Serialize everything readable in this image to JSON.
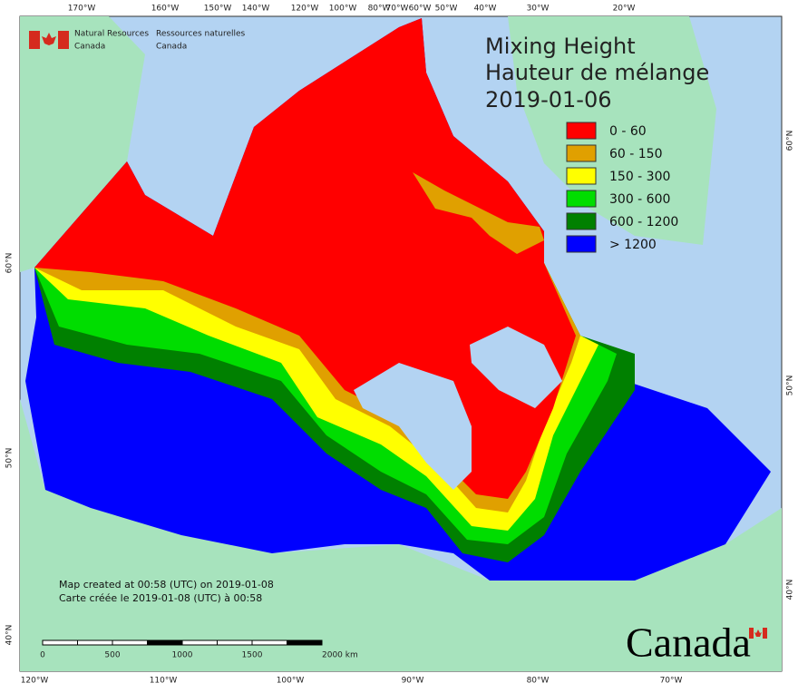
{
  "agency": {
    "en": [
      "Natural Resources",
      "Canada"
    ],
    "fr": [
      "Ressources naturelles",
      "Canada"
    ]
  },
  "title": [
    "Mixing Height",
    "Hauteur de mélange",
    "2019-01-06"
  ],
  "legend": [
    {
      "label": "0 - 60",
      "color": "#ff0000"
    },
    {
      "label": "60 - 150",
      "color": "#e0a000"
    },
    {
      "label": "150 - 300",
      "color": "#ffff00"
    },
    {
      "label": "300 - 600",
      "color": "#00dd00"
    },
    {
      "label": "600 - 1200",
      "color": "#008000"
    },
    {
      "label": "> 1200",
      "color": "#0000ff"
    }
  ],
  "longitude_labels_top": [
    "170°W",
    "160°W",
    "150°W",
    "140°W",
    "120°W",
    "100°W",
    "80°W",
    "70°W",
    "60°W",
    "50°W",
    "40°W",
    "30°W",
    "20°W"
  ],
  "longitude_labels_bottom": [
    "120°W",
    "110°W",
    "100°W",
    "90°W",
    "80°W",
    "70°W"
  ],
  "latitude_labels_left": [
    "60°N",
    "50°N",
    "40°N"
  ],
  "latitude_labels_right": [
    "60°N",
    "50°N",
    "40°N"
  ],
  "notes": [
    "Map created at 00:58 (UTC) on 2019-01-08",
    "Carte créée le 2019-01-08 (UTC) à 00:58"
  ],
  "scale": {
    "labels": [
      "0",
      "500",
      "1000",
      "1500",
      "2000 km"
    ]
  },
  "wordmark": "Canada"
}
